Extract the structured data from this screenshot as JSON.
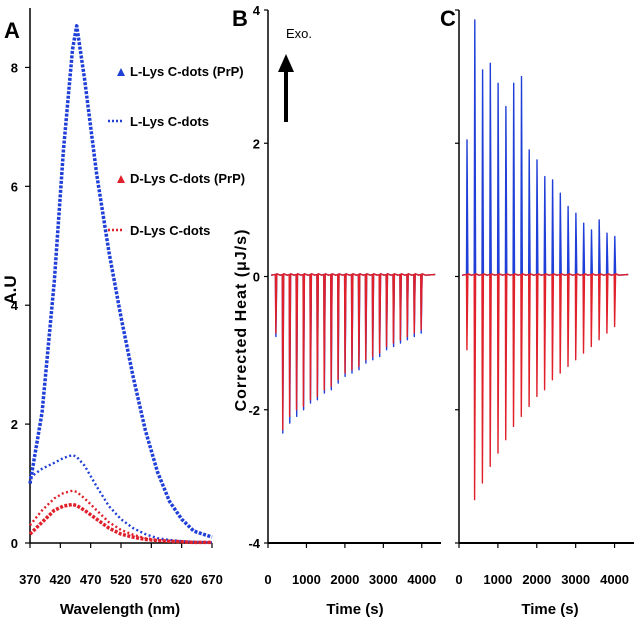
{
  "colors": {
    "blue": "#1f3fd8",
    "red": "#e0202a",
    "axis": "#000000"
  },
  "chart_data": [
    {
      "panel": "A",
      "type": "line",
      "xlabel": "Wavelength (nm)",
      "ylabel": "A.U",
      "xlim": [
        370,
        670
      ],
      "ylim": [
        0,
        9
      ],
      "xticks": [
        "370",
        "420",
        "470",
        "520",
        "570",
        "620",
        "670"
      ],
      "yticks": [
        "0",
        "2",
        "4",
        "6",
        "8"
      ],
      "legend_position": "top-right",
      "x": [
        370,
        390,
        410,
        425,
        440,
        447,
        460,
        480,
        500,
        520,
        540,
        560,
        580,
        600,
        620,
        640,
        670
      ],
      "series": [
        {
          "name": "L-Lys C-dots (PrP)",
          "color": "blue",
          "style": "dashed-thick",
          "values": [
            1.0,
            2.2,
            4.4,
            6.6,
            8.3,
            8.7,
            7.8,
            6.2,
            4.9,
            3.8,
            2.8,
            1.9,
            1.2,
            0.7,
            0.4,
            0.2,
            0.1
          ]
        },
        {
          "name": "L-Lys C-dots",
          "color": "blue",
          "style": "dotted",
          "values": [
            1.1,
            1.25,
            1.35,
            1.43,
            1.48,
            1.45,
            1.3,
            0.95,
            0.62,
            0.4,
            0.25,
            0.15,
            0.08,
            0.05,
            0.03,
            0.02,
            0.01
          ]
        },
        {
          "name": "D-Lys C-dots (PrP)",
          "color": "red",
          "style": "dashed-thick",
          "values": [
            0.15,
            0.35,
            0.55,
            0.62,
            0.65,
            0.63,
            0.55,
            0.4,
            0.25,
            0.15,
            0.1,
            0.06,
            0.04,
            0.03,
            0.02,
            0.01,
            0.01
          ]
        },
        {
          "name": "D-Lys C-dots",
          "color": "red",
          "style": "dotted",
          "values": [
            0.3,
            0.55,
            0.75,
            0.84,
            0.88,
            0.86,
            0.75,
            0.55,
            0.35,
            0.22,
            0.14,
            0.08,
            0.05,
            0.03,
            0.02,
            0.01,
            0.01
          ]
        }
      ]
    },
    {
      "panel": "B",
      "type": "line",
      "xlabel": "Time (s)",
      "ylabel": "Corrected Heat (μJ/s)",
      "annotation": "Exo.",
      "xlim": [
        0,
        4500
      ],
      "ylim": [
        -4,
        4
      ],
      "xticks": [
        "0",
        "1000",
        "2000",
        "3000",
        "4000"
      ],
      "yticks": [
        "4",
        "2",
        "0",
        "-2",
        "-4"
      ],
      "injections": {
        "times": [
          200,
          380,
          560,
          740,
          920,
          1100,
          1280,
          1460,
          1640,
          1820,
          2000,
          2180,
          2360,
          2540,
          2720,
          2900,
          3080,
          3260,
          3440,
          3620,
          3800,
          3980
        ],
        "blue_peaks": [
          -0.9,
          -2.35,
          -2.2,
          -2.1,
          -2.0,
          -1.9,
          -1.85,
          -1.75,
          -1.7,
          -1.6,
          -1.5,
          -1.45,
          -1.4,
          -1.3,
          -1.25,
          -1.2,
          -1.1,
          -1.05,
          -1.0,
          -0.95,
          -0.9,
          -0.85
        ],
        "red_peaks": [
          -0.85,
          -2.3,
          -2.1,
          -2.0,
          -1.95,
          -1.85,
          -1.8,
          -1.7,
          -1.65,
          -1.55,
          -1.45,
          -1.4,
          -1.35,
          -1.25,
          -1.2,
          -1.15,
          -1.05,
          -1.0,
          -0.95,
          -0.9,
          -0.85,
          -0.8
        ]
      }
    },
    {
      "panel": "C",
      "type": "line",
      "xlabel": "Time (s)",
      "xlim": [
        0,
        4500
      ],
      "ylim": [
        -4,
        4
      ],
      "xticks": [
        "0",
        "1000",
        "2000",
        "3000",
        "4000"
      ],
      "injections": {
        "times": [
          200,
          400,
          600,
          800,
          1000,
          1200,
          1400,
          1600,
          1800,
          2000,
          2200,
          2400,
          2600,
          2800,
          3000,
          3200,
          3400,
          3600,
          3800,
          4000
        ],
        "blue_peaks": [
          2.05,
          3.85,
          3.1,
          3.2,
          2.9,
          2.55,
          2.9,
          3.0,
          1.9,
          1.75,
          1.5,
          1.45,
          1.25,
          1.05,
          0.95,
          0.8,
          0.7,
          0.85,
          0.65,
          0.6
        ],
        "red_peaks": [
          -1.1,
          -3.35,
          -3.1,
          -2.85,
          -2.65,
          -2.45,
          -2.25,
          -2.1,
          -1.95,
          -1.8,
          -1.7,
          -1.55,
          -1.45,
          -1.35,
          -1.25,
          -1.15,
          -1.05,
          -0.95,
          -0.85,
          -0.75
        ]
      }
    }
  ]
}
